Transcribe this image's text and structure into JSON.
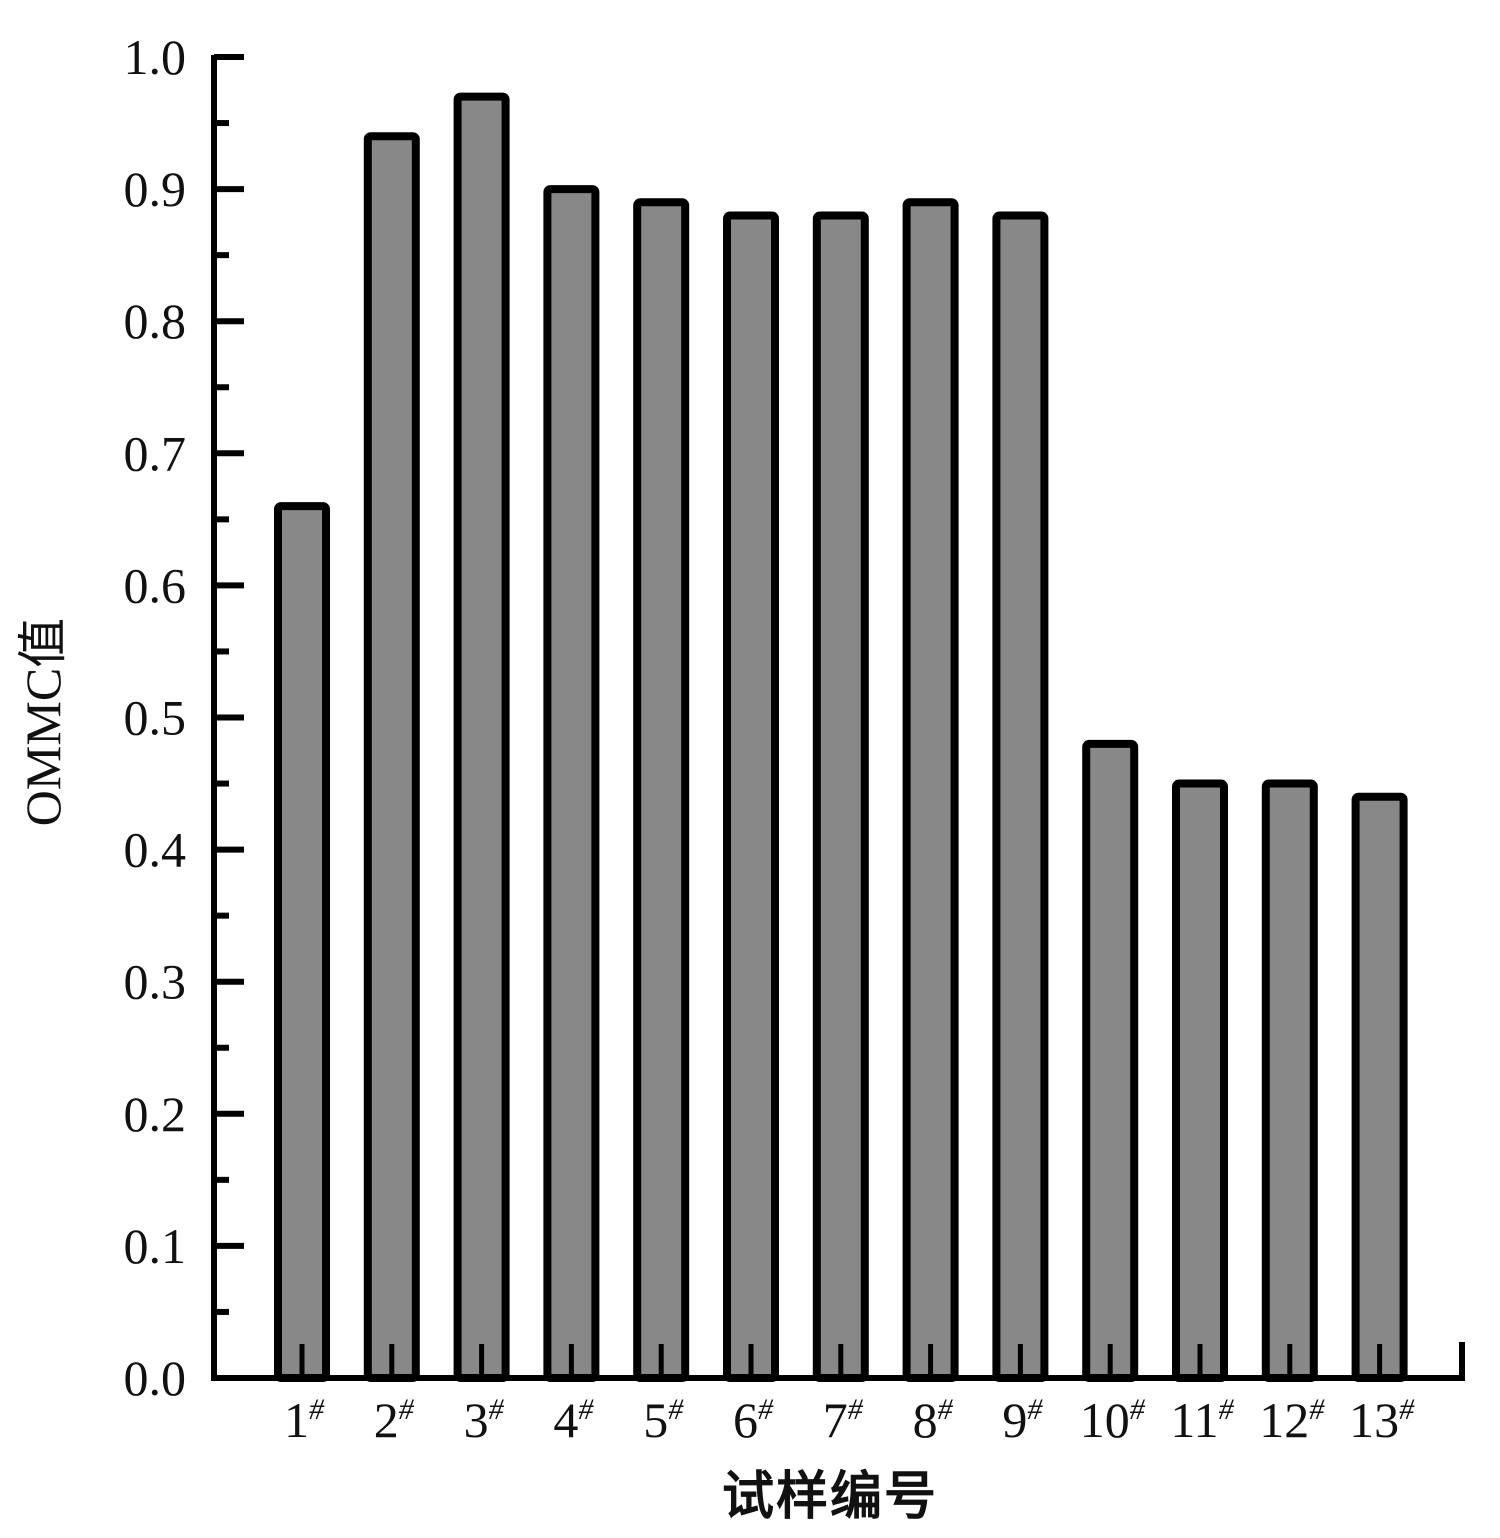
{
  "chart_data": {
    "type": "bar",
    "title": "",
    "xlabel": "试样编号",
    "ylabel": "OMMC值",
    "categories": [
      "1",
      "2",
      "3",
      "4",
      "5",
      "6",
      "7",
      "8",
      "9",
      "10",
      "11",
      "12",
      "13"
    ],
    "category_suffix": "#",
    "values": [
      0.66,
      0.94,
      0.97,
      0.9,
      0.89,
      0.88,
      0.88,
      0.89,
      0.88,
      0.48,
      0.45,
      0.45,
      0.44
    ],
    "ylim": [
      0.0,
      1.0
    ],
    "yticks": [
      "0.0",
      "0.1",
      "0.2",
      "0.3",
      "0.4",
      "0.5",
      "0.6",
      "0.7",
      "0.8",
      "0.9",
      "1.0"
    ],
    "grid": false,
    "legend": "none",
    "colors": {
      "bar_fill": "#888888",
      "bar_stroke": "#000000",
      "axis": "#000000"
    }
  }
}
